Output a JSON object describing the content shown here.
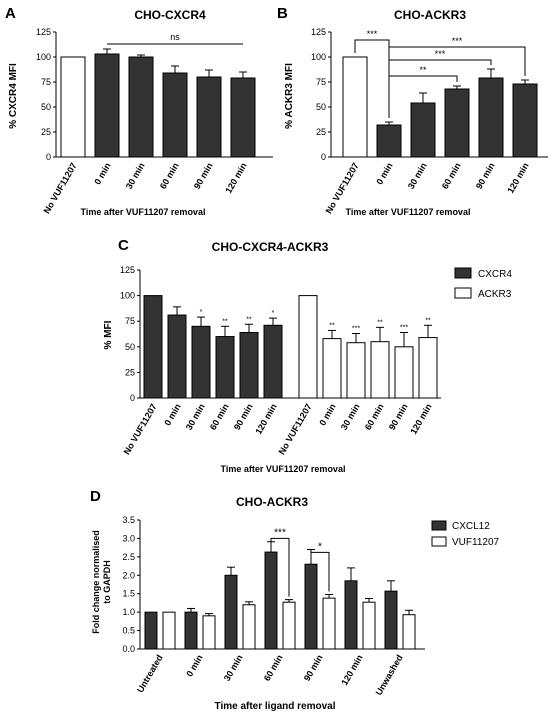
{
  "chart_data": [
    {
      "panel": "A",
      "type": "bar",
      "title": "CHO-CXCR4",
      "ylabel": "% CXCR4 MFI",
      "xlabel": "Time after VUF11207 removal",
      "ylim": [
        0,
        125
      ],
      "yticks": [
        0,
        25,
        50,
        75,
        100,
        125
      ],
      "categories": [
        "No VUF11207",
        "0 min",
        "30 min",
        "60 min",
        "90 min",
        "120 min"
      ],
      "values": [
        100,
        103,
        100,
        84,
        80,
        79
      ],
      "errors": [
        0,
        5,
        2,
        7,
        7,
        6
      ],
      "fills": [
        "white",
        "dark",
        "dark",
        "dark",
        "dark",
        "dark"
      ],
      "annotations": [
        {
          "label": "ns",
          "from": 1,
          "to": 5,
          "y": 113
        }
      ]
    },
    {
      "panel": "B",
      "type": "bar",
      "title": "CHO-ACKR3",
      "ylabel": "% ACKR3 MFI",
      "xlabel": "Time after VUF11207 removal",
      "ylim": [
        0,
        125
      ],
      "yticks": [
        0,
        25,
        50,
        75,
        100,
        125
      ],
      "categories": [
        "No VUF11207",
        "0 min",
        "30 min",
        "60 min",
        "90 min",
        "120 min"
      ],
      "values": [
        100,
        32,
        54,
        68,
        79,
        73
      ],
      "errors": [
        0,
        3,
        10,
        3,
        9,
        4
      ],
      "fills": [
        "white",
        "dark",
        "dark",
        "dark",
        "dark",
        "dark"
      ],
      "annotations": [
        {
          "label": "***",
          "from": 0,
          "to": 1,
          "y": 117
        },
        {
          "label": "***",
          "from": 1,
          "to": 5,
          "y": 110
        },
        {
          "label": "***",
          "from": 1,
          "to": 4,
          "y": 97
        },
        {
          "label": "**",
          "from": 1,
          "to": 3,
          "y": 81
        }
      ]
    },
    {
      "panel": "C",
      "type": "bar",
      "title": "CHO-CXCR4-ACKR3",
      "ylabel": "% MFI",
      "xlabel": "Time after VUF11207 removal",
      "ylim": [
        0,
        125
      ],
      "yticks": [
        0,
        25,
        50,
        75,
        100,
        125
      ],
      "legend": [
        {
          "name": "CXCR4",
          "fill": "dark"
        },
        {
          "name": "ACKR3",
          "fill": "white"
        }
      ],
      "groups": [
        {
          "series": "CXCR4",
          "categories": [
            "No VUF11207",
            "0 min",
            "30 min",
            "60 min",
            "90 min",
            "120 min"
          ],
          "values": [
            100,
            81,
            70,
            60,
            64,
            71
          ],
          "errors": [
            0,
            8,
            9,
            10,
            8,
            7
          ],
          "stars": [
            "",
            "",
            "*",
            "**",
            "**",
            "*"
          ]
        },
        {
          "series": "ACKR3",
          "categories": [
            "No VUF11207",
            "0 min",
            "30 min",
            "60 min",
            "90 min",
            "120 min"
          ],
          "values": [
            100,
            58,
            54,
            55,
            50,
            59
          ],
          "errors": [
            0,
            8,
            9,
            14,
            14,
            12
          ],
          "stars": [
            "",
            "**",
            "***",
            "**",
            "***",
            "**"
          ]
        }
      ]
    },
    {
      "panel": "D",
      "type": "bar",
      "title": "CHO-ACKR3",
      "ylabel": "Fold change normalised to GAPDH",
      "xlabel": "Time after ligand removal",
      "ylim": [
        0,
        3.5
      ],
      "yticks": [
        0,
        0.5,
        1.0,
        1.5,
        2.0,
        2.5,
        3.0,
        3.5
      ],
      "ytick_labels": [
        "0.0",
        "0.5",
        "1.0",
        "1.5",
        "2.0",
        "2.5",
        "3.0",
        "3.5"
      ],
      "categories": [
        "Untreated",
        "0 min",
        "30 min",
        "60 min",
        "90 min",
        "120 min",
        "Unwashed"
      ],
      "series": [
        {
          "name": "CXCL12",
          "fill": "dark",
          "values": [
            1.0,
            1.0,
            2.0,
            2.63,
            2.3,
            1.85,
            1.57
          ],
          "errors": [
            0,
            0.1,
            0.22,
            0.28,
            0.4,
            0.35,
            0.28
          ]
        },
        {
          "name": "VUF11207",
          "fill": "white",
          "values": [
            1.0,
            0.9,
            1.2,
            1.27,
            1.38,
            1.27,
            0.93
          ],
          "errors": [
            0,
            0.06,
            0.08,
            0.07,
            0.1,
            0.1,
            0.12
          ]
        }
      ],
      "annotations": [
        {
          "label": "***",
          "category": 3,
          "y": 3.0
        },
        {
          "label": "*",
          "category": 4,
          "y": 2.62
        }
      ]
    }
  ]
}
